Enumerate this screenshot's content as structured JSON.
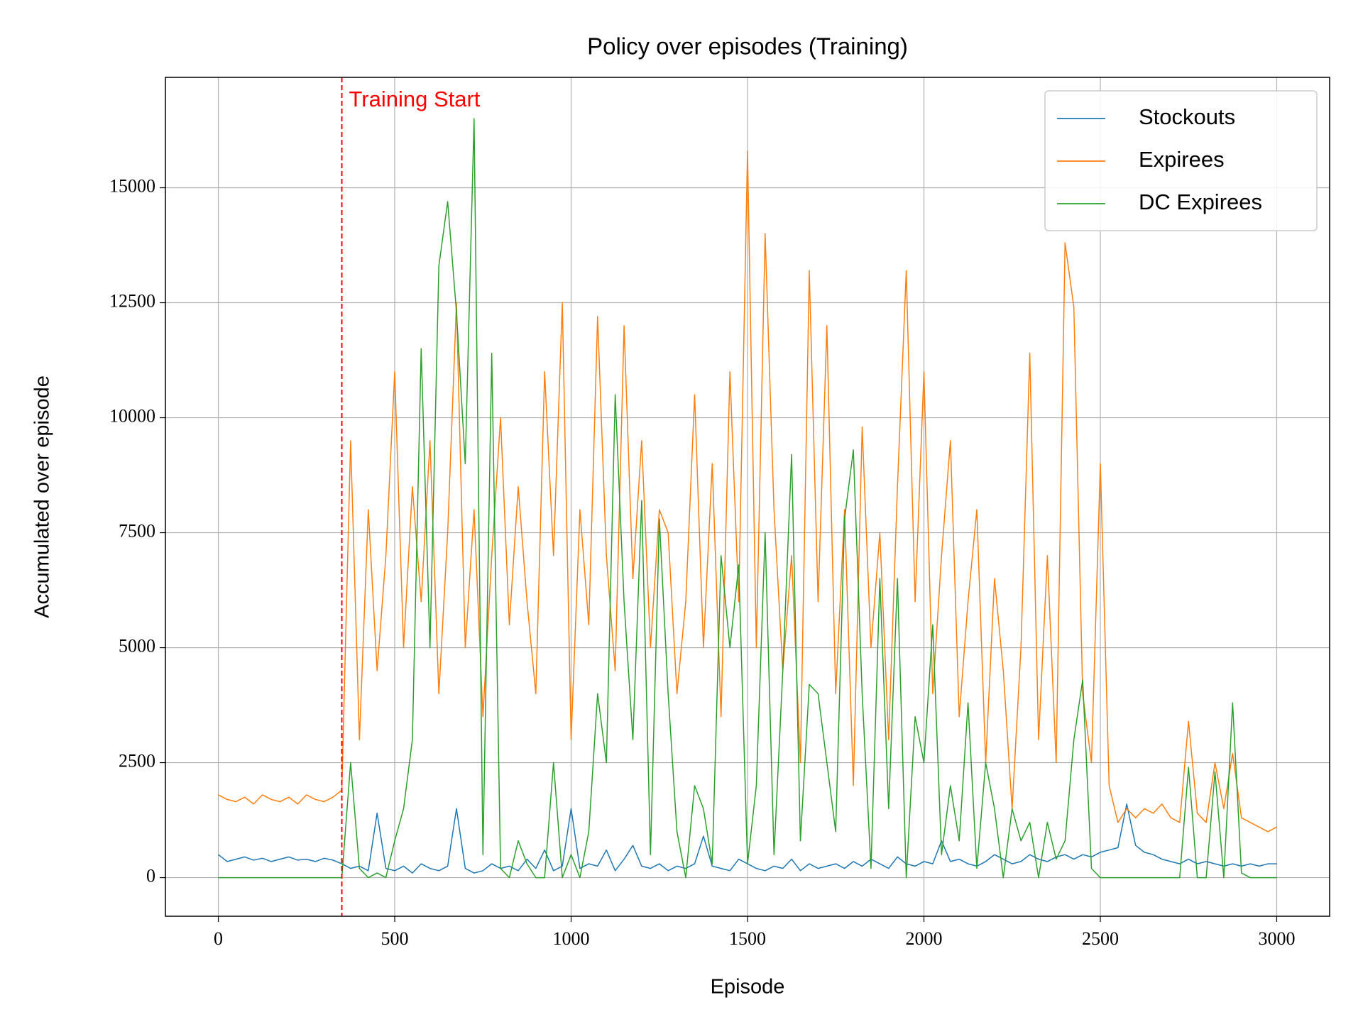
{
  "chart_data": {
    "type": "line",
    "title": "Policy over episodes (Training)",
    "x_label": "Episode",
    "y_label": "Accumulated over episode",
    "x": [
      0,
      25,
      50,
      75,
      100,
      125,
      150,
      175,
      200,
      225,
      250,
      275,
      300,
      325,
      350,
      375,
      400,
      425,
      450,
      475,
      500,
      525,
      550,
      575,
      600,
      625,
      650,
      675,
      700,
      725,
      750,
      775,
      800,
      825,
      850,
      875,
      900,
      925,
      950,
      975,
      1000,
      1025,
      1050,
      1075,
      1100,
      1125,
      1150,
      1175,
      1200,
      1225,
      1250,
      1275,
      1300,
      1325,
      1350,
      1375,
      1400,
      1425,
      1450,
      1475,
      1500,
      1525,
      1550,
      1575,
      1600,
      1625,
      1650,
      1675,
      1700,
      1725,
      1750,
      1775,
      1800,
      1825,
      1850,
      1875,
      1900,
      1925,
      1950,
      1975,
      2000,
      2025,
      2050,
      2075,
      2100,
      2125,
      2150,
      2175,
      2200,
      2225,
      2250,
      2275,
      2300,
      2325,
      2350,
      2375,
      2400,
      2425,
      2450,
      2475,
      2500,
      2525,
      2550,
      2575,
      2600,
      2625,
      2650,
      2675,
      2700,
      2725,
      2750,
      2775,
      2800,
      2825,
      2850,
      2875,
      2900,
      2925,
      2950,
      2975,
      3000
    ],
    "series": [
      {
        "name": "Stockouts",
        "color": "#1f77b4",
        "values": [
          500,
          350,
          400,
          450,
          380,
          420,
          350,
          400,
          450,
          380,
          400,
          350,
          420,
          380,
          300,
          200,
          250,
          150,
          1400,
          200,
          150,
          250,
          100,
          300,
          200,
          150,
          250,
          1500,
          200,
          100,
          150,
          300,
          200,
          250,
          150,
          400,
          200,
          600,
          150,
          250,
          1500,
          200,
          300,
          250,
          600,
          150,
          400,
          700,
          250,
          200,
          300,
          150,
          250,
          200,
          300,
          900,
          250,
          200,
          150,
          400,
          300,
          200,
          150,
          250,
          200,
          400,
          150,
          300,
          200,
          250,
          300,
          200,
          350,
          250,
          400,
          300,
          200,
          450,
          300,
          250,
          350,
          300,
          800,
          350,
          400,
          300,
          250,
          350,
          500,
          400,
          300,
          350,
          500,
          400,
          350,
          450,
          500,
          400,
          500,
          450,
          550,
          600,
          650,
          1600,
          700,
          550,
          500,
          400,
          350,
          300,
          400,
          300,
          350,
          300,
          250,
          300,
          250,
          300,
          250,
          300,
          300
        ]
      },
      {
        "name": "Expirees",
        "color": "#ff7f0e",
        "values": [
          1800,
          1700,
          1650,
          1750,
          1600,
          1800,
          1700,
          1650,
          1750,
          1600,
          1800,
          1700,
          1650,
          1750,
          1900,
          9500,
          3000,
          8000,
          4500,
          7000,
          11000,
          5000,
          8500,
          6000,
          9500,
          4000,
          7500,
          12500,
          5000,
          8000,
          3500,
          7000,
          10000,
          5500,
          8500,
          6000,
          4000,
          11000,
          7000,
          12500,
          3000,
          8000,
          5500,
          12200,
          7000,
          4500,
          12000,
          6500,
          9500,
          5000,
          8000,
          7500,
          4000,
          6000,
          10500,
          5000,
          9000,
          3500,
          11000,
          6000,
          15800,
          5000,
          14000,
          8000,
          4500,
          7000,
          2500,
          13200,
          6000,
          12000,
          4000,
          8000,
          2000,
          9800,
          5000,
          7500,
          3000,
          8500,
          13200,
          6000,
          11000,
          4000,
          7000,
          9500,
          3500,
          6000,
          8000,
          2500,
          6500,
          4500,
          1500,
          5000,
          11400,
          3000,
          7000,
          2500,
          13800,
          12400,
          4000,
          2500,
          9000,
          2000,
          1200,
          1500,
          1300,
          1500,
          1400,
          1600,
          1300,
          1200,
          3400,
          1400,
          1200,
          2500,
          1500,
          2700,
          1300,
          1200,
          1100,
          1000,
          1100
        ]
      },
      {
        "name": "DC Expirees",
        "color": "#2ca02c",
        "values": [
          0,
          0,
          0,
          0,
          0,
          0,
          0,
          0,
          0,
          0,
          0,
          0,
          0,
          0,
          0,
          2500,
          200,
          0,
          100,
          0,
          800,
          1500,
          3000,
          11500,
          5000,
          13300,
          14700,
          12300,
          9000,
          16500,
          500,
          11400,
          200,
          0,
          800,
          300,
          0,
          0,
          2500,
          0,
          500,
          0,
          1000,
          4000,
          2500,
          10500,
          6000,
          3000,
          8200,
          500,
          7800,
          4000,
          1000,
          0,
          2000,
          1500,
          300,
          7000,
          5000,
          6800,
          300,
          2000,
          7500,
          500,
          4500,
          9200,
          800,
          4200,
          4000,
          2500,
          1000,
          7800,
          9300,
          4000,
          200,
          6500,
          1500,
          6500,
          0,
          3500,
          2500,
          5500,
          500,
          2000,
          800,
          3800,
          200,
          2500,
          1500,
          0,
          1500,
          800,
          1200,
          0,
          1200,
          400,
          800,
          3000,
          4300,
          200,
          0,
          0,
          0,
          0,
          0,
          0,
          0,
          0,
          0,
          0,
          2400,
          0,
          0,
          2300,
          0,
          3800,
          100,
          0,
          0,
          0,
          0
        ]
      }
    ],
    "vline": {
      "x": 350,
      "label": "Training Start",
      "color": "#ff0000"
    },
    "xlim": [
      -150,
      3150
    ],
    "ylim": [
      -840,
      17400
    ],
    "xticks": [
      0,
      500,
      1000,
      1500,
      2000,
      2500,
      3000
    ],
    "yticks": [
      0,
      2500,
      5000,
      7500,
      10000,
      12500,
      15000
    ],
    "grid": true,
    "legend": "upper right"
  }
}
